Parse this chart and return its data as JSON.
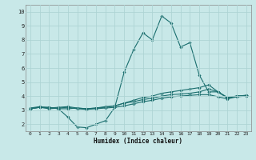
{
  "xlabel": "Humidex (Indice chaleur)",
  "xlim": [
    -0.5,
    23.5
  ],
  "ylim": [
    1.5,
    10.5
  ],
  "xticks": [
    0,
    1,
    2,
    3,
    4,
    5,
    6,
    7,
    8,
    9,
    10,
    11,
    12,
    13,
    14,
    15,
    16,
    17,
    18,
    19,
    20,
    21,
    22,
    23
  ],
  "yticks": [
    2,
    3,
    4,
    5,
    6,
    7,
    8,
    9,
    10
  ],
  "bg_color": "#c8e8e8",
  "grid_color": "#aed4d4",
  "line_color": "#1a6e6e",
  "line1_x": [
    0,
    1,
    2,
    3,
    4,
    5,
    6,
    7,
    8,
    9,
    10,
    11,
    12,
    13,
    14,
    15,
    16,
    17,
    18,
    19,
    20,
    21,
    22,
    23
  ],
  "line1_y": [
    3.1,
    3.2,
    3.2,
    3.1,
    2.5,
    1.8,
    1.75,
    2.0,
    2.25,
    3.2,
    5.7,
    7.3,
    8.5,
    8.0,
    9.7,
    9.2,
    7.5,
    7.8,
    5.5,
    4.3,
    4.3,
    3.85,
    4.0,
    4.0
  ],
  "line2_x": [
    0,
    1,
    2,
    3,
    4,
    5,
    6,
    7,
    8,
    9,
    10,
    11,
    12,
    13,
    14,
    15,
    16,
    17,
    18,
    19,
    20,
    21,
    22,
    23
  ],
  "line2_y": [
    3.1,
    3.2,
    3.2,
    3.1,
    3.1,
    3.15,
    3.1,
    3.15,
    3.2,
    3.3,
    3.5,
    3.7,
    3.9,
    4.0,
    4.2,
    4.3,
    4.4,
    4.5,
    4.6,
    4.8,
    4.3,
    3.9,
    4.0,
    4.05
  ],
  "line3_x": [
    0,
    1,
    2,
    3,
    4,
    5,
    6,
    7,
    8,
    9,
    10,
    11,
    12,
    13,
    14,
    15,
    16,
    17,
    18,
    19,
    20,
    21,
    22,
    23
  ],
  "line3_y": [
    3.1,
    3.2,
    3.1,
    3.15,
    3.2,
    3.1,
    3.05,
    3.1,
    3.15,
    3.2,
    3.3,
    3.45,
    3.6,
    3.7,
    3.85,
    3.95,
    4.0,
    4.05,
    4.1,
    4.1,
    3.95,
    3.8,
    3.95,
    4.0
  ],
  "line4_x": [
    0,
    1,
    2,
    3,
    4,
    5,
    6,
    7,
    8,
    9,
    10,
    11,
    12,
    13,
    14,
    15,
    16,
    17,
    18,
    19,
    20,
    21,
    22,
    23
  ],
  "line4_y": [
    3.15,
    3.25,
    3.15,
    3.2,
    3.25,
    3.15,
    3.1,
    3.15,
    3.25,
    3.3,
    3.5,
    3.6,
    3.75,
    3.85,
    4.0,
    4.1,
    4.15,
    4.2,
    4.3,
    4.5,
    4.3,
    3.9,
    4.0,
    4.05
  ]
}
